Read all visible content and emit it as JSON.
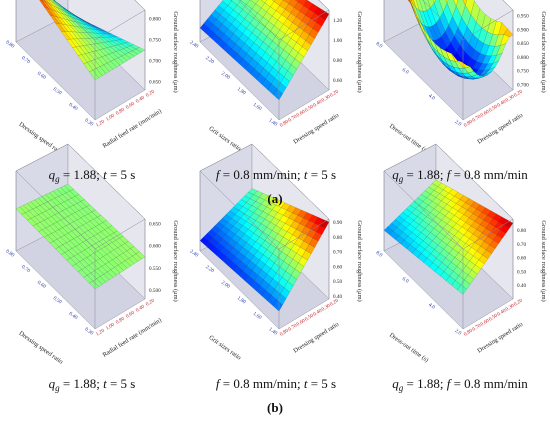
{
  "figure": {
    "row_labels": [
      "(a)",
      "(b)"
    ],
    "captions": [
      [
        "q_g = 1.88; t = 5 s",
        "f = 0.8 mm/min; t = 5 s",
        "q_g = 1.88; f = 0.8 mm/min"
      ],
      [
        "q_g = 1.88; t = 5 s",
        "f = 0.8 mm/min; t = 5 s",
        "q_g = 1.88; f = 0.8 mm/min"
      ]
    ]
  },
  "chart_data": [
    {
      "type": "surface",
      "row": "a",
      "col": 1,
      "xlabel": "Dressing speed ratio",
      "ylabel": "Radial feed rate (mm/min)",
      "zlabel": "Ground surface roughness (μm)",
      "x_ticks": [
        "0.80",
        "0.70",
        "0.60",
        "0.50",
        "0.40",
        "0.30"
      ],
      "y_ticks": [
        "1.20",
        "1.00",
        "0.80",
        "0.60",
        "0.40",
        "0.20"
      ],
      "z_ticks": [
        "0.650",
        "0.700",
        "0.750",
        "0.800"
      ],
      "zlim": [
        0.63,
        0.82
      ],
      "z_corners": [
        0.81,
        0.725,
        0.725,
        0.635
      ]
    },
    {
      "type": "surface",
      "row": "a",
      "col": 2,
      "xlabel": "Grit sizes ratio",
      "ylabel": "Dressing speed ratio",
      "zlabel": "Ground surface roughness (μm)",
      "x_ticks": [
        "2.40",
        "2.20",
        "2.00",
        "1.80",
        "1.60",
        "1.40"
      ],
      "y_ticks": [
        "0.80",
        "0.70",
        "0.60",
        "0.50",
        "0.40",
        "0.30",
        "0.20"
      ],
      "z_ticks": [
        "0.60",
        "0.80",
        "1.00",
        "1.20"
      ],
      "zlim": [
        0.5,
        1.3
      ],
      "z_corners": [
        0.64,
        0.7,
        1.26,
        1.0
      ]
    },
    {
      "type": "surface",
      "row": "a",
      "col": 3,
      "xlabel": "Dress-out time (s)",
      "ylabel": "Dressing speed ratio",
      "zlabel": "Ground surface roughness (μm)",
      "x_ticks": [
        "8.0",
        "6.0",
        "4.0",
        "2.0"
      ],
      "y_ticks": [
        "0.80",
        "0.70",
        "0.60",
        "0.50",
        "0.40",
        "0.30",
        "0.20"
      ],
      "z_ticks": [
        "0.700",
        "0.750",
        "0.800",
        "0.850",
        "0.900",
        "0.950"
      ],
      "zlim": [
        0.68,
        0.97
      ],
      "z_corners": [
        0.94,
        0.87,
        0.88,
        0.92
      ],
      "z_bowl": 0.7
    },
    {
      "type": "surface",
      "row": "b",
      "col": 1,
      "xlabel": "Dressing speed ratio",
      "ylabel": "Radial feed rate (mm/min)",
      "zlabel": "Ground surface roughness (μm)",
      "x_ticks": [
        "0.80",
        "0.70",
        "0.60",
        "0.50",
        "0.40",
        "0.30"
      ],
      "y_ticks": [
        "1.20",
        "1.00",
        "0.80",
        "0.60",
        "0.40",
        "0.20"
      ],
      "z_ticks": [
        "0.500",
        "0.550",
        "0.600",
        "0.650"
      ],
      "zlim": [
        0.48,
        0.66
      ],
      "z_corners": [
        0.575,
        0.57,
        0.575,
        0.57
      ]
    },
    {
      "type": "surface",
      "row": "b",
      "col": 2,
      "xlabel": "Grit sizes ratio",
      "ylabel": "Dressing speed ratio",
      "zlabel": "Ground surface roughness (μm)",
      "x_ticks": [
        "2.40",
        "2.20",
        "2.00",
        "1.80",
        "1.60",
        "1.40"
      ],
      "y_ticks": [
        "0.80",
        "0.70",
        "0.60",
        "0.50",
        "0.40",
        "0.30",
        "0.20"
      ],
      "z_ticks": [
        "0.40",
        "0.50",
        "0.60",
        "0.70",
        "0.80",
        "0.90"
      ],
      "zlim": [
        0.38,
        0.92
      ],
      "z_corners": [
        0.45,
        0.5,
        0.9,
        0.62
      ]
    },
    {
      "type": "surface",
      "row": "b",
      "col": 3,
      "xlabel": "Dress-out time (s)",
      "ylabel": "Dressing speed ratio",
      "zlabel": "Ground surface roughness (μm)",
      "x_ticks": [
        "8.0",
        "6.0",
        "4.0",
        "2.0"
      ],
      "y_ticks": [
        "0.80",
        "0.70",
        "0.60",
        "0.50",
        "0.40",
        "0.30",
        "0.20"
      ],
      "z_ticks": [
        "0.40",
        "0.50",
        "0.60",
        "0.70",
        "0.80"
      ],
      "zlim": [
        0.3,
        0.88
      ],
      "z_corners": [
        0.45,
        0.55,
        0.85,
        0.62
      ]
    }
  ]
}
